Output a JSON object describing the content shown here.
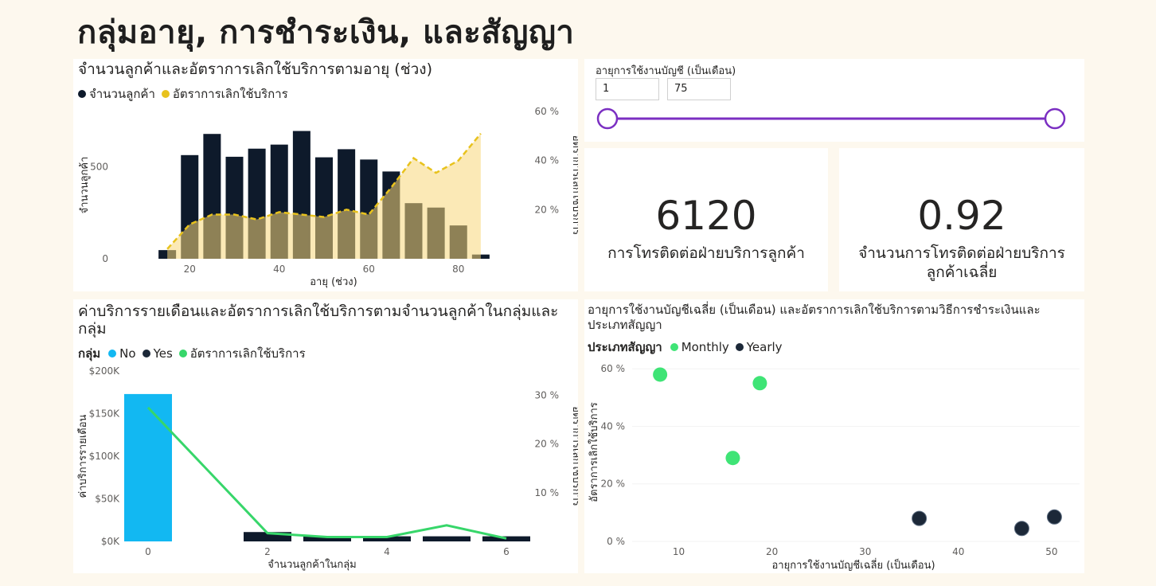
{
  "title": "กลุ่มอายุ, การชำระเงิน, และสัญญา",
  "chart_data": [
    {
      "type": "bar+area",
      "title": "จำนวนลูกค้าและอัตราการเลิกใช้บริการตามอายุ (ช่วง)",
      "xlabel": "อายุ (ช่วง)",
      "ylabel": "จำนวนลูกค้า",
      "y2label": "อัตราการเลิกใช้บริการ",
      "legend": [
        "จำนวนลูกค้า",
        "อัตราการเลิกใช้บริการ"
      ],
      "xlim": [
        10,
        90
      ],
      "ylim": [
        0,
        800
      ],
      "y2lim": [
        0,
        0.6
      ],
      "x_ticks": [
        "20",
        "40",
        "60",
        "80"
      ],
      "y_ticks": [
        "0",
        "500"
      ],
      "y2_ticks": [
        "20 %",
        "40 %",
        "60 %"
      ],
      "x": [
        15,
        20,
        25,
        30,
        35,
        40,
        45,
        50,
        55,
        60,
        65,
        70,
        75,
        80,
        85
      ],
      "customers": [
        47,
        563,
        678,
        554,
        598,
        620,
        694,
        551,
        595,
        539,
        474,
        302,
        278,
        181,
        23
      ],
      "churn_rate": [
        0.04,
        0.14,
        0.18,
        0.18,
        0.16,
        0.19,
        0.18,
        0.17,
        0.2,
        0.18,
        0.29,
        0.41,
        0.35,
        0.4,
        0.51
      ]
    },
    {
      "type": "bar+line",
      "title": "ค่าบริการรายเดือนและอัตราการเลิกใช้บริการตามจำนวนลูกค้าในกลุ่มและกลุ่ม",
      "xlabel": "จำนวนลูกค้าในกลุ่ม",
      "ylabel": "ค่าบริการรายเดือน",
      "y2label": "อัตราการเลิกใช้บริการ",
      "legend_title": "กลุ่ม",
      "legend": [
        "No",
        "Yes",
        "อัตราการเลิกใช้บริการ"
      ],
      "xlim": [
        -0.4,
        6.4
      ],
      "ylim": [
        0,
        200000
      ],
      "y2lim": [
        0,
        0.35
      ],
      "x_ticks": [
        "0",
        "2",
        "4",
        "6"
      ],
      "y_ticks": [
        "$0K",
        "$50K",
        "$100K",
        "$150K",
        "$200K"
      ],
      "y2_ticks": [
        "10 %",
        "20 %",
        "30 %"
      ],
      "x": [
        0,
        2,
        3,
        4,
        5,
        6
      ],
      "series": [
        {
          "name": "No",
          "values": [
            173000,
            0,
            0,
            0,
            0,
            0
          ]
        },
        {
          "name": "Yes",
          "values": [
            0,
            11000,
            6000,
            6000,
            6000,
            6000
          ]
        }
      ],
      "churn_rate": [
        0.275,
        0.017,
        0.009,
        0.009,
        0.033,
        0.006
      ]
    },
    {
      "type": "scatter",
      "title": "อายุการใช้งานบัญชีเฉลี่ย (เป็นเดือน) และอัตราการเลิกใช้บริการตามวิธีการชำระเงินและประเภทสัญญา",
      "xlabel": "อายุการใช้งานบัญชีเฉลี่ย (เป็นเดือน)",
      "ylabel": "อัตราการเลิกใช้บริการ",
      "legend_title": "ประเภทสัญญา",
      "legend": [
        "Monthly",
        "Yearly"
      ],
      "xlim": [
        5,
        53
      ],
      "ylim": [
        0,
        0.62
      ],
      "x_ticks": [
        "10",
        "20",
        "30",
        "40",
        "50"
      ],
      "y_ticks": [
        "0 %",
        "20 %",
        "40 %",
        "60 %"
      ],
      "series": [
        {
          "name": "Monthly",
          "points": [
            [
              8.0,
              0.58
            ],
            [
              18.7,
              0.55
            ],
            [
              15.8,
              0.29
            ]
          ]
        },
        {
          "name": "Yearly",
          "points": [
            [
              35.8,
              0.08
            ],
            [
              46.8,
              0.045
            ],
            [
              50.3,
              0.085
            ]
          ]
        }
      ]
    }
  ],
  "slicer": {
    "title": "อายุการใช้งานบัญชี (เป็นเดือน)",
    "min": "1",
    "max": "75",
    "range": [
      0,
      1
    ]
  },
  "cards": [
    {
      "value": "6120",
      "label": "การโทรติดต่อฝ่ายบริการลูกค้า"
    },
    {
      "value": "0.92",
      "label": "จำนวนการโทรติดต่อฝ่ายบริการลูกค้าเฉลี่ย"
    }
  ],
  "colors": {
    "bar_dark": "#0e1a2b",
    "area_fill": "#f7d77a",
    "area_line": "#e8c21d",
    "bar_no": "#12b8f2",
    "line_green": "#37d66a",
    "scatter_monthly": "#3fe476",
    "scatter_yearly": "#1c2838",
    "slider": "#7b2fc2"
  }
}
